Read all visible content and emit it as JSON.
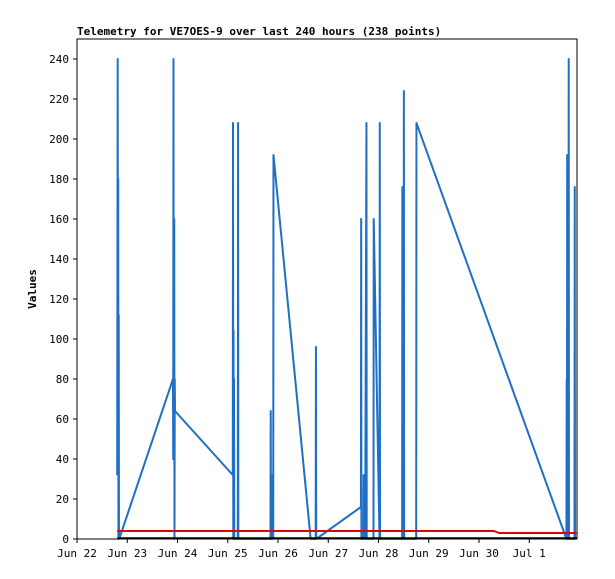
{
  "chart_data": {
    "type": "line",
    "title": "Telemetry for VE7OES-9 over last 240 hours (238 points)",
    "xlabel": "",
    "ylabel": "Values",
    "xlim": [
      0,
      9.95
    ],
    "ylim": [
      0,
      250
    ],
    "x_tick_labels": [
      "Jun 22",
      "Jun 23",
      "Jun 24",
      "Jun 25",
      "Jun 26",
      "Jun 27",
      "Jun 28",
      "Jun 29",
      "Jun 30",
      "Jul 1"
    ],
    "y_ticks": [
      0,
      20,
      40,
      60,
      80,
      100,
      120,
      140,
      160,
      180,
      200,
      220,
      240
    ],
    "grid": false,
    "series": [
      {
        "color": "#1f6fc5",
        "points": [
          [
            0.8,
            32
          ],
          [
            0.81,
            240
          ],
          [
            0.815,
            32
          ],
          [
            0.82,
            180
          ],
          [
            0.825,
            0
          ],
          [
            0.83,
            112
          ],
          [
            0.835,
            0
          ],
          [
            0.84,
            0
          ],
          [
            1.91,
            80
          ],
          [
            1.915,
            40
          ],
          [
            1.92,
            240
          ],
          [
            1.925,
            40
          ],
          [
            1.93,
            80
          ],
          [
            1.935,
            160
          ],
          [
            1.94,
            0
          ],
          [
            1.945,
            80
          ],
          [
            1.95,
            64
          ],
          [
            3.1,
            32
          ],
          [
            3.105,
            208
          ],
          [
            3.11,
            0
          ],
          [
            3.115,
            104
          ],
          [
            3.12,
            0
          ],
          [
            3.125,
            80
          ],
          [
            3.13,
            0
          ],
          [
            3.2,
            0
          ],
          [
            3.205,
            208
          ],
          [
            3.21,
            0
          ],
          [
            3.85,
            0
          ],
          [
            3.855,
            64
          ],
          [
            3.86,
            0
          ],
          [
            3.87,
            32
          ],
          [
            3.875,
            0
          ],
          [
            3.9,
            16
          ],
          [
            3.905,
            0
          ],
          [
            3.91,
            192
          ],
          [
            4.65,
            0
          ],
          [
            4.75,
            0
          ],
          [
            4.755,
            96
          ],
          [
            4.76,
            0
          ],
          [
            5.65,
            16
          ],
          [
            5.655,
            160
          ],
          [
            5.66,
            0
          ],
          [
            5.7,
            0
          ],
          [
            5.705,
            32
          ],
          [
            5.71,
            0
          ],
          [
            5.73,
            32
          ],
          [
            5.735,
            0
          ],
          [
            5.76,
            208
          ],
          [
            5.765,
            0
          ],
          [
            5.9,
            0
          ],
          [
            5.905,
            160
          ],
          [
            6.02,
            0
          ],
          [
            6.025,
            208
          ],
          [
            6.03,
            0
          ],
          [
            6.47,
            0
          ],
          [
            6.475,
            176
          ],
          [
            6.48,
            0
          ],
          [
            6.5,
            0
          ],
          [
            6.505,
            224
          ],
          [
            6.51,
            0
          ],
          [
            6.75,
            0
          ],
          [
            6.755,
            208
          ],
          [
            9.74,
            0
          ],
          [
            9.745,
            80
          ],
          [
            9.75,
            0
          ],
          [
            9.755,
            192
          ],
          [
            9.76,
            0
          ],
          [
            9.78,
            0
          ],
          [
            9.785,
            240
          ],
          [
            9.79,
            0
          ],
          [
            9.9,
            0
          ],
          [
            9.905,
            176
          ],
          [
            9.91,
            0
          ]
        ]
      },
      {
        "color": "#e00000",
        "points": [
          [
            0.8,
            4
          ],
          [
            2.0,
            4
          ],
          [
            4.0,
            4
          ],
          [
            6.0,
            4
          ],
          [
            8.0,
            4
          ],
          [
            8.3,
            4
          ],
          [
            8.4,
            3
          ],
          [
            9.0,
            3
          ],
          [
            9.4,
            3
          ],
          [
            9.95,
            3
          ]
        ]
      },
      {
        "color": "#000000",
        "points": [
          [
            0.8,
            0.4
          ],
          [
            9.95,
            0.4
          ]
        ]
      }
    ]
  }
}
